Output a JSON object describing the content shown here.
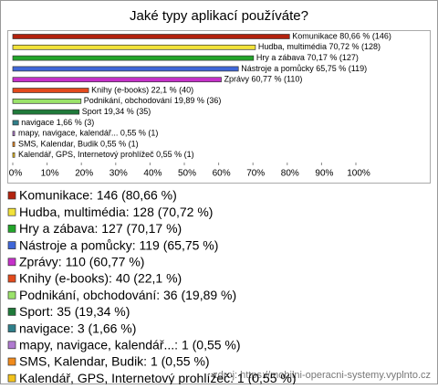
{
  "chart_data": {
    "type": "bar",
    "orientation": "horizontal",
    "title": "Jaké typy aplikací používáte?",
    "categories": [
      "Komunikace",
      "Hudba, multimédia",
      "Hry a zábava",
      "Nástroje a pomůcky",
      "Zprávy",
      "Knihy (e-books)",
      "Podnikání, obchodování",
      "Sport",
      "navigace",
      "mapy, navigace, kalendář...",
      "SMS, Kalendar, Budik",
      "Kalendář, GPS, Internetový prohlížeč"
    ],
    "values": [
      80.66,
      70.72,
      70.17,
      65.75,
      60.77,
      22.1,
      19.89,
      19.34,
      1.66,
      0.55,
      0.55,
      0.55
    ],
    "value_labels": [
      "Komunikace 80,66 % (146)",
      "Hudba, multimédia 70,72 % (128)",
      "Hry a zábava 70,17 % (127)",
      "Nástroje a pomůcky 65,75 % (119)",
      "Zprávy 60,77 % (110)",
      "Knihy (e-books) 22,1 % (40)",
      "Podnikání, obchodování 19,89 % (36)",
      "Sport 19,34 % (35)",
      "navigace 1,66 % (3)",
      "mapy, navigace, kalendář... 0,55 % (1)",
      "SMS, Kalendar, Budik 0,55 % (1)",
      "Kalendář, GPS, Internetový prohlížeč 0,55 % (1)"
    ],
    "legend_labels": [
      "Komunikace: 146 (80,66 %)",
      "Hudba, multimédia: 128 (70,72 %)",
      "Hry a zábava: 127 (70,17 %)",
      "Nástroje a pomůcky: 119 (65,75 %)",
      "Zprávy: 110 (60,77 %)",
      "Knihy (e-books): 40 (22,1 %)",
      "Podnikání, obchodování: 36 (19,89 %)",
      "Sport: 35 (19,34 %)",
      "navigace: 3 (1,66 %)",
      "mapy, navigace, kalendář...: 1 (0,55 %)",
      "SMS, Kalendar, Budik: 1 (0,55 %)",
      "Kalendář, GPS, Internetový prohlížeč: 1 (0,55 %)"
    ],
    "colors": [
      "#b3220e",
      "#f2e23a",
      "#22a52a",
      "#3f67d8",
      "#c531c9",
      "#e34a1c",
      "#9be36a",
      "#1f7a3a",
      "#2f7f8a",
      "#b07ad0",
      "#f08a1c",
      "#f2c21c"
    ],
    "xlim": [
      0,
      100
    ],
    "xticks": [
      {
        "value": 0,
        "label": "0%"
      },
      {
        "value": 10,
        "label": "10%"
      },
      {
        "value": 20,
        "label": "20%"
      },
      {
        "value": 30,
        "label": "30%"
      },
      {
        "value": 40,
        "label": "40%"
      },
      {
        "value": 50,
        "label": "50%"
      },
      {
        "value": 60,
        "label": "60%"
      },
      {
        "value": 70,
        "label": "70%"
      },
      {
        "value": 80,
        "label": "80%"
      },
      {
        "value": 90,
        "label": "90%"
      },
      {
        "value": 100,
        "label": "100%"
      }
    ],
    "source": "zdroj: https://mobilni-operacni-systemy.vyplnto.cz"
  }
}
